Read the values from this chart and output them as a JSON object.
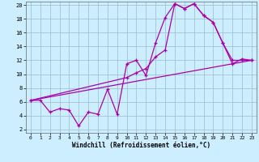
{
  "title": "",
  "xlabel": "Windchill (Refroidissement éolien,°C)",
  "ylabel": "",
  "bg_color": "#cceeff",
  "line_color": "#aa00aa",
  "grid_color": "#99bbcc",
  "xlim": [
    -0.5,
    23.5
  ],
  "ylim": [
    1.5,
    20.5
  ],
  "xticks": [
    0,
    1,
    2,
    3,
    4,
    5,
    6,
    7,
    8,
    9,
    10,
    11,
    12,
    13,
    14,
    15,
    16,
    17,
    18,
    19,
    20,
    21,
    22,
    23
  ],
  "yticks": [
    2,
    4,
    6,
    8,
    10,
    12,
    14,
    16,
    18,
    20
  ],
  "line1_x": [
    0,
    1,
    2,
    3,
    4,
    5,
    6,
    7,
    8,
    9,
    10,
    11,
    12,
    13,
    14,
    15,
    16,
    17,
    18,
    19,
    20,
    21,
    22,
    23
  ],
  "line1_y": [
    6.2,
    6.2,
    4.5,
    5.0,
    4.8,
    2.5,
    4.5,
    4.2,
    7.8,
    4.2,
    11.5,
    12.0,
    9.8,
    14.5,
    18.2,
    20.2,
    19.5,
    20.2,
    18.5,
    17.5,
    14.5,
    12.0,
    12.0,
    12.0
  ],
  "line2_x": [
    0,
    23
  ],
  "line2_y": [
    6.2,
    12.0
  ],
  "line3_x": [
    0,
    10,
    11,
    12,
    13,
    14,
    15,
    16,
    17,
    18,
    19,
    20,
    21,
    22,
    23
  ],
  "line3_y": [
    6.2,
    9.5,
    10.2,
    10.8,
    12.5,
    13.5,
    20.2,
    19.5,
    20.2,
    18.5,
    17.5,
    14.5,
    11.5,
    12.2,
    12.0
  ]
}
